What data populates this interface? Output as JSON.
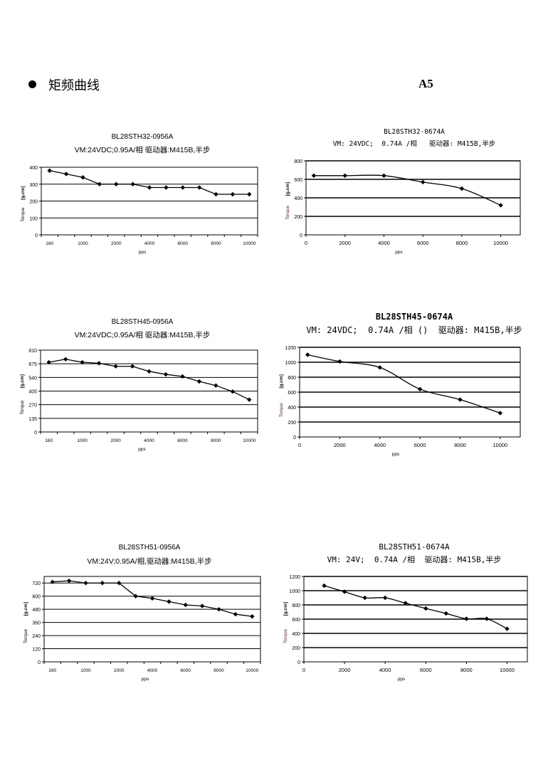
{
  "header": {
    "bullet_icon": "filled-circle",
    "title": "矩频曲线",
    "code": "A5"
  },
  "chart_data": [
    {
      "type": "line",
      "x_axis": "category",
      "title": "BL28STH32-0956A",
      "subtitle": "VM:24VDC;0.95A/相 驱动器:M415B,半步",
      "xlabel": "pps",
      "ylabel": "Torque",
      "yunit": "[g.cm]",
      "categories": [
        "160",
        "",
        "1000",
        "",
        "2000",
        "",
        "4000",
        "",
        "6000",
        "",
        "8000",
        "",
        "10000"
      ],
      "values": [
        380,
        360,
        340,
        300,
        300,
        300,
        280,
        280,
        280,
        280,
        240,
        240,
        240
      ],
      "ylim": [
        0,
        400
      ],
      "yticks": [
        0,
        100,
        200,
        300,
        400
      ],
      "grid": true
    },
    {
      "type": "line",
      "x_axis": "numeric",
      "title": "BL28STH32-0674A",
      "subtitle": "VM: 24VDC;  0.74A /相   驱动器: M415B,半步",
      "xlabel": "pps",
      "ylabel": "Torque",
      "yunit": "[g.cm]",
      "x": [
        400,
        2000,
        4000,
        6000,
        8000,
        10000
      ],
      "values": [
        640,
        640,
        640,
        570,
        500,
        320
      ],
      "xlim": [
        0,
        11000
      ],
      "xticks": [
        0,
        2000,
        4000,
        6000,
        8000,
        10000
      ],
      "ylim": [
        0,
        800
      ],
      "yticks": [
        0,
        200,
        400,
        600,
        800
      ],
      "grid": true
    },
    {
      "type": "line",
      "x_axis": "category",
      "title": "BL28STH45-0956A",
      "subtitle": "VM:24VDC;0.95A/相 驱动器:M415B,半步",
      "xlabel": "pps",
      "ylabel": "Torque",
      "yunit": "[g.cm]",
      "categories": [
        "160",
        "",
        "1000",
        "",
        "2000",
        "",
        "4000",
        "",
        "6000",
        "",
        "8000",
        "",
        "10000"
      ],
      "values": [
        690,
        720,
        690,
        680,
        650,
        650,
        600,
        570,
        550,
        500,
        460,
        400,
        320
      ],
      "ylim": [
        0,
        810
      ],
      "yticks": [
        0,
        135,
        270,
        405,
        540,
        675,
        810
      ],
      "grid": true
    },
    {
      "type": "line",
      "x_axis": "numeric",
      "title": "BL28STH45-0674A",
      "subtitle": "VM: 24VDC;  0.74A /相 ()  驱动器: M415B,半步",
      "xlabel": "pps",
      "ylabel": "Torque",
      "yunit": "[g.cm]",
      "x": [
        400,
        2000,
        4000,
        6000,
        8000,
        10000
      ],
      "values": [
        1100,
        1010,
        930,
        640,
        500,
        320
      ],
      "xlim": [
        0,
        11000
      ],
      "xticks": [
        0,
        2000,
        4000,
        6000,
        8000,
        10000
      ],
      "ylim": [
        0,
        1200
      ],
      "yticks": [
        0,
        200,
        400,
        600,
        800,
        1000,
        1200
      ],
      "grid": true
    },
    {
      "type": "line",
      "x_axis": "category",
      "title": "BL28STH51-0956A",
      "subtitle": "VM:24V;0.95A/相,驱动器:M415B,半步",
      "xlabel": "pps",
      "ylabel": "Torque",
      "yunit": "[g.cm]",
      "categories": [
        "160",
        "",
        "1000",
        "",
        "2000",
        "",
        "4000",
        "",
        "6000",
        "",
        "8000",
        "",
        "10000"
      ],
      "values": [
        730,
        740,
        720,
        720,
        720,
        600,
        580,
        550,
        520,
        510,
        480,
        435,
        415
      ],
      "ylim": [
        0,
        780
      ],
      "yticks": [
        0,
        120,
        240,
        360,
        480,
        600,
        720
      ],
      "grid": true
    },
    {
      "type": "line",
      "x_axis": "numeric",
      "title": "BL28STH51-0674A",
      "subtitle": "VM: 24V;  0.74A /相  驱动器: M415B,半步",
      "xlabel": "pps",
      "ylabel": "Torque",
      "yunit": "[g.cm]",
      "x": [
        1000,
        2000,
        3000,
        4000,
        5000,
        6000,
        7000,
        8000,
        9000,
        10000
      ],
      "values": [
        1070,
        985,
        900,
        900,
        825,
        750,
        680,
        605,
        605,
        465
      ],
      "xlim": [
        0,
        11000
      ],
      "xticks": [
        0,
        2000,
        4000,
        6000,
        8000,
        10000
      ],
      "ylim": [
        0,
        1200
      ],
      "yticks": [
        0,
        200,
        400,
        600,
        800,
        1000,
        1200
      ],
      "grid": true
    }
  ]
}
